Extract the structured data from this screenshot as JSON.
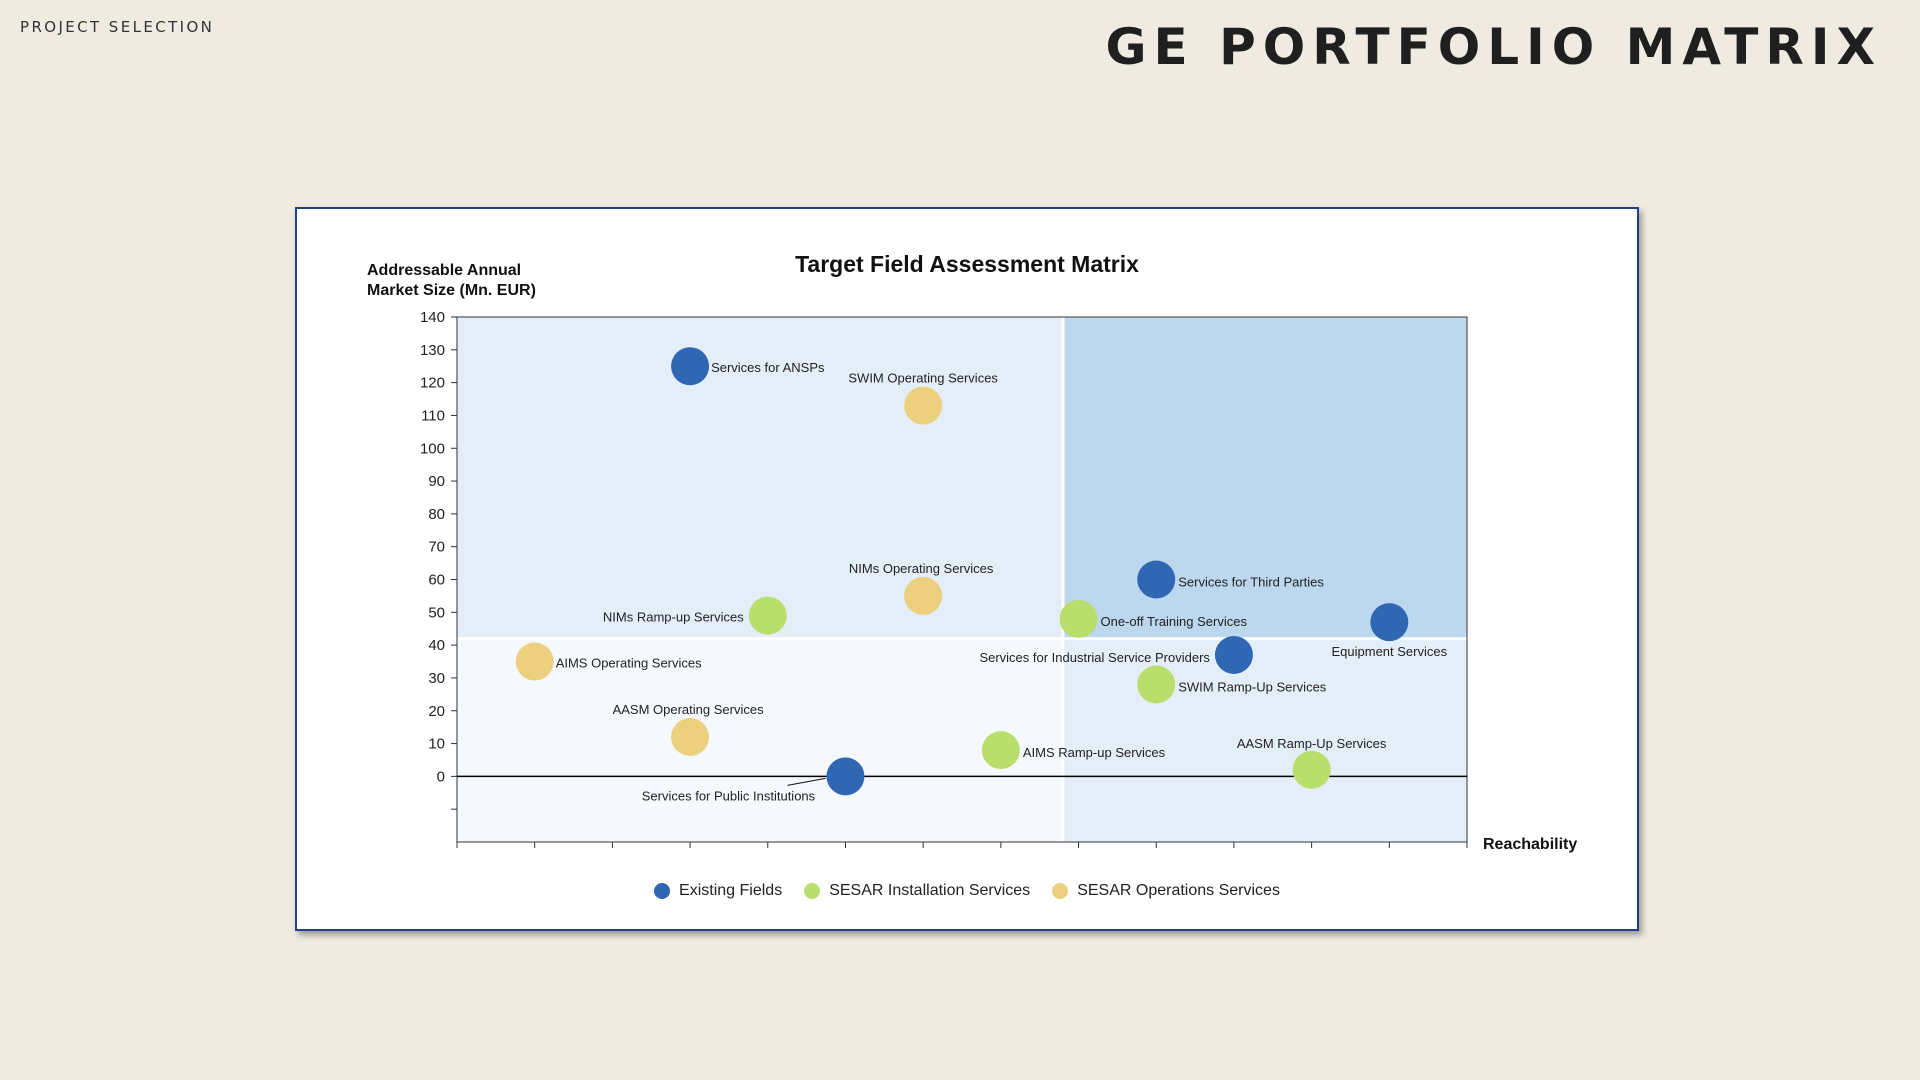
{
  "header": {
    "section_label": "PROJECT SELECTION",
    "title": "GE PORTFOLIO MATRIX"
  },
  "chart_data": {
    "type": "scatter",
    "title": "Target Field Assessment Matrix",
    "ylabel_lines": [
      "Addressable Annual",
      "Market Size (Mn. EUR)"
    ],
    "xlabel": "Reachability",
    "ylim": [
      -20,
      140
    ],
    "xlim": [
      0,
      13
    ],
    "y_ticks": [
      140,
      130,
      120,
      110,
      100,
      90,
      80,
      70,
      60,
      50,
      40,
      30,
      20,
      10,
      0
    ],
    "quadrant_split": {
      "x": 7.8,
      "y": 42
    },
    "legend_position": "bottom",
    "grid": false,
    "colors": {
      "Existing Fields": "#2f67b3",
      "SESAR Installation Services": "#b9de6b",
      "SESAR Operations Services": "#ecd07e"
    },
    "series": [
      {
        "name": "Existing Fields",
        "points": [
          {
            "label": "Services for ANSPs",
            "x": 3,
            "y": 125
          },
          {
            "label": "Services for Third Parties",
            "x": 9,
            "y": 60
          },
          {
            "label": "Equipment Services",
            "x": 12,
            "y": 47
          },
          {
            "label": "Services for Industrial Service Providers",
            "x": 10,
            "y": 37
          },
          {
            "label": "Services for Public Institutions",
            "x": 5,
            "y": 0
          }
        ]
      },
      {
        "name": "SESAR Installation Services",
        "points": [
          {
            "label": "NIMs Ramp-up Services",
            "x": 4,
            "y": 49
          },
          {
            "label": "One-off Training Services",
            "x": 8,
            "y": 48
          },
          {
            "label": "SWIM Ramp-Up Services",
            "x": 9,
            "y": 28
          },
          {
            "label": "AIMS Ramp-up Services",
            "x": 7,
            "y": 8
          },
          {
            "label": "AASM Ramp-Up Services",
            "x": 11,
            "y": 2
          }
        ]
      },
      {
        "name": "SESAR Operations Services",
        "points": [
          {
            "label": "SWIM Operating Services",
            "x": 6,
            "y": 113
          },
          {
            "label": "NIMs Operating Services",
            "x": 6,
            "y": 55
          },
          {
            "label": "AIMS Operating Services",
            "x": 1,
            "y": 35
          },
          {
            "label": "AASM Operating Services",
            "x": 3,
            "y": 12
          }
        ]
      }
    ]
  }
}
